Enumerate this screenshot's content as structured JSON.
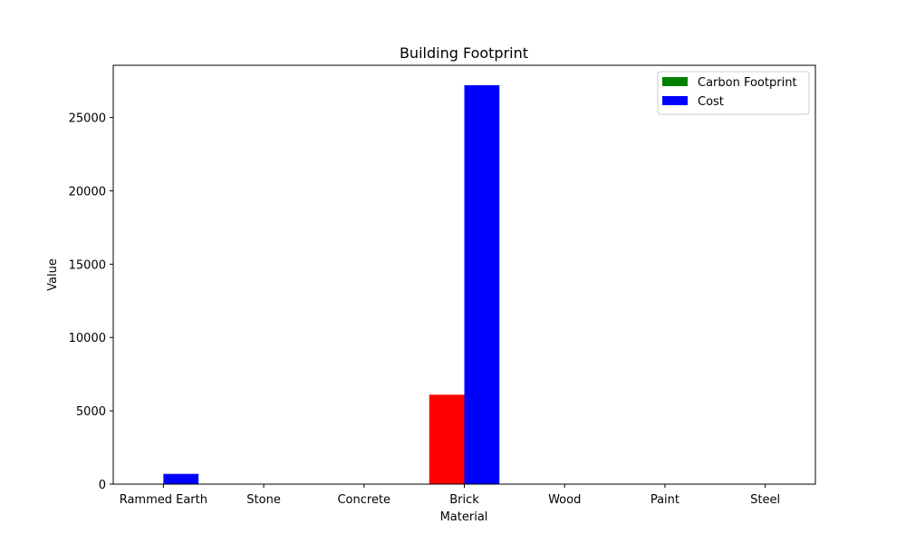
{
  "chart_data": {
    "type": "bar",
    "title": "Building Footprint",
    "xlabel": "Material",
    "ylabel": "Value",
    "categories": [
      "Rammed Earth",
      "Stone",
      "Concrete",
      "Brick",
      "Wood",
      "Paint",
      "Steel"
    ],
    "series": [
      {
        "name": "Carbon Footprint",
        "legend_color": "#008000",
        "colors": [
          "#ff0000",
          "#ff0000",
          "#ff0000",
          "#ff0000",
          "#ff0000",
          "#ff0000",
          "#ff0000"
        ],
        "values": [
          20,
          0,
          0,
          6100,
          0,
          0,
          0
        ]
      },
      {
        "name": "Cost",
        "legend_color": "#0000ff",
        "colors": [
          "#0000ff",
          "#0000ff",
          "#0000ff",
          "#0000ff",
          "#0000ff",
          "#0000ff",
          "#0000ff"
        ],
        "values": [
          700,
          0,
          0,
          27200,
          0,
          0,
          0
        ]
      }
    ],
    "ylim": [
      0,
      28560
    ],
    "yticks": [
      0,
      5000,
      10000,
      15000,
      20000,
      25000
    ],
    "legend_position": "top-right",
    "grid": false
  }
}
